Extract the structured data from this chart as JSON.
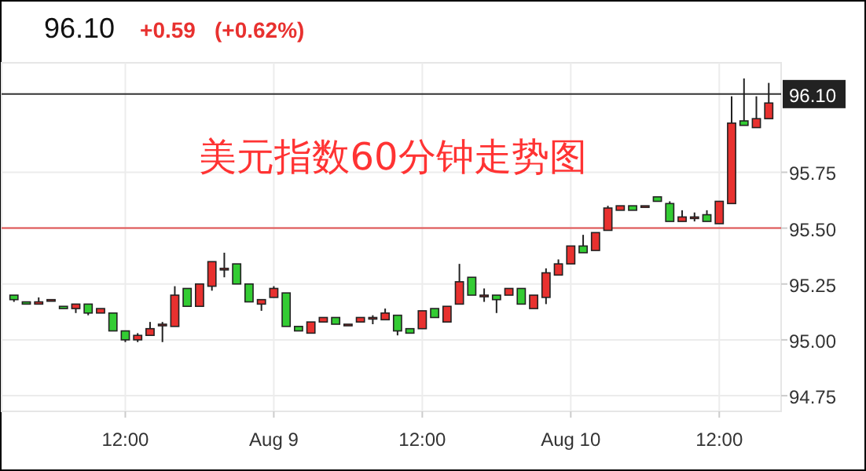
{
  "chart_data": {
    "type": "candlestick",
    "title": "美元指数60分钟走势图",
    "annotations": [
      "96.10",
      "+0.59",
      "(+0.62%)"
    ],
    "categories": [
      null,
      null,
      null,
      null,
      null,
      null,
      null,
      null,
      null,
      "12:00",
      null,
      null,
      null,
      null,
      null,
      null,
      null,
      null,
      null,
      null,
      null,
      "Aug 9",
      null,
      null,
      null,
      null,
      null,
      null,
      null,
      null,
      null,
      null,
      null,
      "12:00",
      null,
      null,
      null,
      null,
      null,
      null,
      null,
      null,
      null,
      null,
      null,
      "Aug 10",
      null,
      null,
      null,
      null,
      null,
      null,
      null,
      null,
      null,
      null,
      null,
      "12:00",
      null,
      null,
      null,
      null
    ],
    "ohlc": [
      [
        95.2,
        95.2,
        95.17,
        95.18
      ],
      [
        95.17,
        95.17,
        95.16,
        95.16
      ],
      [
        95.16,
        95.19,
        95.16,
        95.17
      ],
      [
        95.18,
        95.18,
        95.18,
        95.18
      ],
      [
        95.15,
        95.15,
        95.14,
        95.14
      ],
      [
        95.14,
        95.16,
        95.12,
        95.16
      ],
      [
        95.16,
        95.16,
        95.11,
        95.12
      ],
      [
        95.12,
        95.14,
        95.12,
        95.14
      ],
      [
        95.12,
        95.12,
        95.04,
        95.04
      ],
      [
        95.04,
        95.04,
        94.99,
        95.0
      ],
      [
        95.0,
        95.03,
        94.99,
        95.02
      ],
      [
        95.02,
        95.08,
        95.02,
        95.05
      ],
      [
        95.07,
        95.08,
        94.99,
        95.07
      ],
      [
        95.06,
        95.24,
        95.06,
        95.2
      ],
      [
        95.23,
        95.23,
        95.15,
        95.15
      ],
      [
        95.15,
        95.25,
        95.15,
        95.25
      ],
      [
        95.24,
        95.35,
        95.22,
        95.35
      ],
      [
        95.32,
        95.39,
        95.28,
        95.32
      ],
      [
        95.34,
        95.34,
        95.25,
        95.25
      ],
      [
        95.25,
        95.25,
        95.17,
        95.17
      ],
      [
        95.16,
        95.18,
        95.13,
        95.18
      ],
      [
        95.19,
        95.24,
        95.19,
        95.23
      ],
      [
        95.21,
        95.21,
        95.06,
        95.06
      ],
      [
        95.06,
        95.06,
        95.04,
        95.04
      ],
      [
        95.03,
        95.08,
        95.03,
        95.08
      ],
      [
        95.08,
        95.1,
        95.08,
        95.1
      ],
      [
        95.1,
        95.1,
        95.07,
        95.07
      ],
      [
        95.07,
        95.07,
        95.07,
        95.07
      ],
      [
        95.08,
        95.1,
        95.08,
        95.1
      ],
      [
        95.1,
        95.11,
        95.07,
        95.1
      ],
      [
        95.09,
        95.14,
        95.09,
        95.12
      ],
      [
        95.11,
        95.11,
        95.02,
        95.04
      ],
      [
        95.05,
        95.05,
        95.03,
        95.03
      ],
      [
        95.05,
        95.13,
        95.05,
        95.13
      ],
      [
        95.14,
        95.14,
        95.1,
        95.1
      ],
      [
        95.08,
        95.15,
        95.08,
        95.15
      ],
      [
        95.16,
        95.34,
        95.16,
        95.26
      ],
      [
        95.28,
        95.28,
        95.2,
        95.2
      ],
      [
        95.2,
        95.23,
        95.17,
        95.2
      ],
      [
        95.2,
        95.2,
        95.12,
        95.18
      ],
      [
        95.2,
        95.23,
        95.2,
        95.23
      ],
      [
        95.23,
        95.23,
        95.16,
        95.16
      ],
      [
        95.14,
        95.2,
        95.14,
        95.2
      ],
      [
        95.19,
        95.32,
        95.16,
        95.3
      ],
      [
        95.29,
        95.36,
        95.29,
        95.34
      ],
      [
        95.34,
        95.42,
        95.34,
        95.42
      ],
      [
        95.42,
        95.47,
        95.39,
        95.39
      ],
      [
        95.4,
        95.48,
        95.4,
        95.48
      ],
      [
        95.49,
        95.6,
        95.49,
        95.59
      ],
      [
        95.58,
        95.6,
        95.58,
        95.6
      ],
      [
        95.6,
        95.6,
        95.58,
        95.58
      ],
      [
        95.6,
        95.6,
        95.6,
        95.6
      ],
      [
        95.64,
        95.64,
        95.62,
        95.62
      ],
      [
        95.61,
        95.62,
        95.53,
        95.53
      ],
      [
        95.53,
        95.58,
        95.53,
        95.55
      ],
      [
        95.55,
        95.57,
        95.53,
        95.55
      ],
      [
        95.56,
        95.58,
        95.53,
        95.53
      ],
      [
        95.52,
        95.62,
        95.52,
        95.62
      ],
      [
        95.61,
        96.09,
        95.61,
        95.97
      ],
      [
        95.98,
        96.17,
        95.96,
        95.96
      ],
      [
        95.95,
        96.09,
        95.95,
        95.99
      ],
      [
        95.99,
        96.15,
        95.99,
        96.06
      ]
    ],
    "colors": [
      "#33cc33",
      "#33cc33",
      "#e8312f",
      "#e8312f",
      "#33cc33",
      "#e8312f",
      "#33cc33",
      "#e8312f",
      "#33cc33",
      "#33cc33",
      "#e8312f",
      "#e8312f",
      "#e8312f",
      "#e8312f",
      "#33cc33",
      "#e8312f",
      "#e8312f",
      "#e8312f",
      "#33cc33",
      "#33cc33",
      "#e8312f",
      "#e8312f",
      "#33cc33",
      "#33cc33",
      "#e8312f",
      "#e8312f",
      "#33cc33",
      "#e8312f",
      "#e8312f",
      "#e8312f",
      "#e8312f",
      "#33cc33",
      "#33cc33",
      "#e8312f",
      "#33cc33",
      "#e8312f",
      "#e8312f",
      "#33cc33",
      "#e8312f",
      "#33cc33",
      "#e8312f",
      "#33cc33",
      "#e8312f",
      "#e8312f",
      "#e8312f",
      "#e8312f",
      "#33cc33",
      "#e8312f",
      "#e8312f",
      "#e8312f",
      "#33cc33",
      "#e8312f",
      "#33cc33",
      "#33cc33",
      "#e8312f",
      "#e8312f",
      "#33cc33",
      "#e8312f",
      "#e8312f",
      "#33cc33",
      "#e8312f",
      "#e8312f"
    ],
    "ylim": [
      94.68,
      96.24
    ],
    "yticks": [
      {
        "value": 94.75,
        "label": "94.75"
      },
      {
        "value": 95,
        "label": "95.00"
      },
      {
        "value": 95.25,
        "label": "95.25"
      },
      {
        "value": 95.5,
        "label": "95.50"
      },
      {
        "value": 95.75,
        "label": "95.75"
      }
    ],
    "ref_lines": [
      {
        "axis": "y",
        "value": 95.5,
        "label": null,
        "color": "#e05050"
      },
      {
        "axis": "y",
        "value": 96.1,
        "label": "96.10",
        "color": "#333333"
      }
    ],
    "grid": true
  }
}
